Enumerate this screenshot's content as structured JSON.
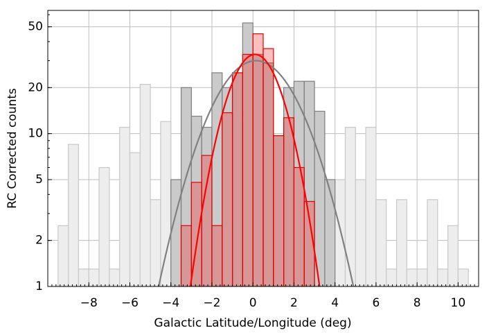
{
  "chart_data": {
    "type": "histogram",
    "xlabel": "Galactic Latitude/Longitude (deg)",
    "ylabel": "RC Corrected counts",
    "xlim": [
      -10,
      11
    ],
    "ylim": [
      1,
      64
    ],
    "yscale": "log",
    "grid": true,
    "xticks": [
      {
        "value": -8,
        "label": "−8"
      },
      {
        "value": -6,
        "label": "−6"
      },
      {
        "value": -4,
        "label": "−4"
      },
      {
        "value": -2,
        "label": "−2"
      },
      0,
      2,
      4,
      6,
      8,
      10
    ],
    "yticks": [
      1,
      2,
      5,
      10,
      20,
      50
    ],
    "histograms": [
      {
        "color": "#ededed",
        "edgecolor": "#c8c8c8",
        "bins": [
          -9.5,
          -9,
          -8.5,
          -8,
          -7.5,
          -7,
          -6.5,
          -6,
          -5.5,
          -5,
          -4.5,
          -4,
          -3.5,
          -3,
          -2.5,
          -2,
          -1.5,
          -1,
          -0.5,
          0,
          0.5,
          1,
          1.5,
          2,
          2.5,
          3,
          3.5,
          4,
          4.5,
          5,
          5.5,
          6,
          6.5,
          7,
          7.5,
          8,
          8.5,
          9,
          9.5,
          10,
          10.5
        ],
        "counts": [
          2.5,
          8.5,
          1.3,
          1.3,
          6,
          1.3,
          11,
          7.5,
          21,
          3.7,
          12,
          5,
          20,
          13,
          11,
          25,
          20,
          25,
          53,
          33,
          29,
          9.7,
          20,
          22,
          22,
          14,
          5,
          5,
          11,
          5,
          11,
          3.7,
          1.3,
          3.7,
          1.3,
          1.3,
          3.7,
          1.3,
          2.5,
          1.3
        ]
      },
      {
        "color": "rgba(160,160,160,0.45)",
        "edgecolor": "#808080",
        "bins": [
          -4,
          -3.5,
          -3,
          -2.5,
          -2,
          -1.5,
          -1,
          -0.5,
          0,
          0.5,
          1,
          1.5,
          2,
          2.5,
          3,
          3.5,
          4
        ],
        "counts": [
          5,
          20,
          13,
          11,
          25,
          20,
          25,
          53,
          33,
          29,
          9.7,
          20,
          22,
          22,
          14,
          5
        ]
      },
      {
        "color": "rgba(255,0,0,0.25)",
        "edgecolor": "#e00000",
        "bins": [
          -3.5,
          -3,
          -2.5,
          -2,
          -1.5,
          -1,
          -0.5,
          0,
          0.5,
          1,
          1.5,
          2,
          2.5,
          3,
          3.5
        ],
        "counts": [
          2.5,
          4.8,
          7.2,
          2.5,
          13.7,
          25,
          33,
          45,
          36,
          9.7,
          12.7,
          6,
          3.6,
          1
        ]
      }
    ],
    "fits": [
      {
        "color": "#808080",
        "amplitude": 30,
        "mean": 0.15,
        "sigma": 1.82
      },
      {
        "color": "#ff0000",
        "amplitude": 33,
        "mean": 0.1,
        "sigma": 1.19
      }
    ]
  }
}
